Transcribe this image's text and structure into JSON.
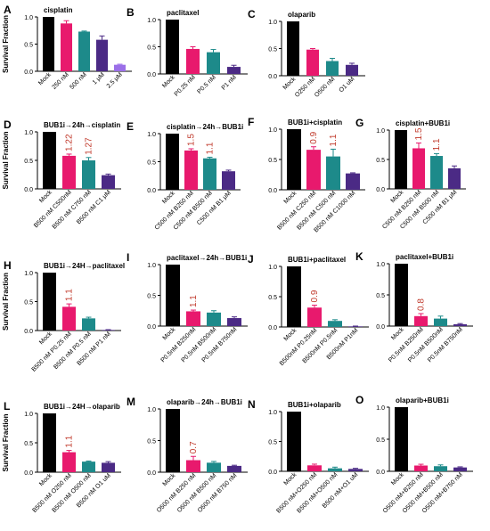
{
  "figure": {
    "ylabel": "Survival Fraction"
  },
  "chart_data": [
    {
      "letter": "A",
      "title": "cisplatin",
      "type": "bar",
      "ylabel": "Survival Fraction",
      "yticks": [
        "0.0",
        "0.5",
        "1.0"
      ],
      "ylim": [
        0,
        1.0
      ],
      "categories": [
        "Mock",
        "250 nM",
        "500 nM",
        "1 μM",
        "2.5 μM"
      ],
      "values": [
        1.0,
        0.88,
        0.73,
        0.58,
        0.12
      ],
      "errors": [
        0,
        0.05,
        0.01,
        0.07,
        0.01
      ],
      "colors": [
        "#000000",
        "#e8196d",
        "#1d8a8a",
        "#4b2a85",
        "#9b6fe8"
      ],
      "annotations": [
        "",
        "",
        "",
        "",
        ""
      ]
    },
    {
      "letter": "B",
      "title": "paclitaxel",
      "type": "bar",
      "ylabel": "",
      "yticks": [
        "0.0",
        "0.5",
        "1.0"
      ],
      "ylim": [
        0,
        1.0
      ],
      "categories": [
        "Mock",
        "P0.25 nM",
        "P0.5 nM",
        "P1 nM"
      ],
      "values": [
        1.0,
        0.46,
        0.4,
        0.13
      ],
      "errors": [
        0,
        0.04,
        0.05,
        0.03
      ],
      "colors": [
        "#000000",
        "#e8196d",
        "#1d8a8a",
        "#4b2a85"
      ],
      "annotations": [
        "",
        "",
        "",
        ""
      ]
    },
    {
      "letter": "C",
      "title": "olaparib",
      "type": "bar",
      "ylabel": "",
      "yticks": [
        "0.0",
        "0.5",
        "1.0"
      ],
      "ylim": [
        0,
        1.0
      ],
      "categories": [
        "Mock",
        "O250 nM",
        "O500 nM",
        "O1 uM"
      ],
      "values": [
        1.0,
        0.48,
        0.27,
        0.2
      ],
      "errors": [
        0,
        0.02,
        0.05,
        0.03
      ],
      "colors": [
        "#000000",
        "#e8196d",
        "#1d8a8a",
        "#4b2a85"
      ],
      "annotations": [
        "",
        "",
        "",
        ""
      ]
    },
    {
      "letter": "D",
      "title": "BUB1i→24h→cisplatin",
      "type": "bar",
      "ylabel": "Survival Fraction",
      "yticks": [
        "0.0",
        "0.5",
        "1.0"
      ],
      "ylim": [
        0,
        1.0
      ],
      "categories": [
        "Mock",
        "B500 nM C500nM",
        "B500 nM C750 nM",
        "B500 nM C1 μM"
      ],
      "values": [
        1.0,
        0.58,
        0.5,
        0.24
      ],
      "errors": [
        0,
        0.03,
        0.05,
        0.02
      ],
      "colors": [
        "#000000",
        "#e8196d",
        "#1d8a8a",
        "#4b2a85"
      ],
      "annotations": [
        "",
        "1.22",
        "1.27",
        ""
      ]
    },
    {
      "letter": "E",
      "title": "cisplatin→24h→BUB1i",
      "type": "bar",
      "ylabel": "",
      "yticks": [
        "0.0",
        "0.5",
        "1.0"
      ],
      "ylim": [
        0,
        1.0
      ],
      "categories": [
        "Mock",
        "C500 nM B250 nM",
        "C500 nM B500 nM",
        "C500 nM B1 μM"
      ],
      "values": [
        1.0,
        0.7,
        0.56,
        0.33
      ],
      "errors": [
        0,
        0.03,
        0.02,
        0.02
      ],
      "colors": [
        "#000000",
        "#e8196d",
        "#1d8a8a",
        "#4b2a85"
      ],
      "annotations": [
        "",
        "1.5",
        "1.1",
        ""
      ]
    },
    {
      "letter": "F",
      "title": "BUB1i+cisplatin",
      "type": "bar",
      "ylabel": "",
      "yticks": [
        "0.0",
        "0.5",
        "1.0"
      ],
      "ylim": [
        0,
        1.0
      ],
      "categories": [
        "Mock",
        "B500 nM C250 nM",
        "B500 nM C500 nM",
        "B500 nM C1000 nM"
      ],
      "values": [
        1.0,
        0.66,
        0.55,
        0.27
      ],
      "errors": [
        0,
        0.05,
        0.12,
        0.01
      ],
      "colors": [
        "#000000",
        "#e8196d",
        "#1d8a8a",
        "#4b2a85"
      ],
      "annotations": [
        "",
        "0.9",
        "1.1",
        ""
      ]
    },
    {
      "letter": "G",
      "title": "cisplatin+BUB1i",
      "type": "bar",
      "ylabel": "",
      "yticks": [
        "0.0",
        "0.5",
        "1.0"
      ],
      "ylim": [
        0,
        1.0
      ],
      "categories": [
        "Mock",
        "C500 nM B250 nM",
        "C500 nM B500 nM",
        "C500 nM B1 μM"
      ],
      "values": [
        1.0,
        0.69,
        0.56,
        0.35
      ],
      "errors": [
        0,
        0.09,
        0.04,
        0.04
      ],
      "colors": [
        "#000000",
        "#e8196d",
        "#1d8a8a",
        "#4b2a85"
      ],
      "annotations": [
        "",
        "1.5",
        "1.1",
        ""
      ]
    },
    {
      "letter": "H",
      "title": "BUB1i→24H→paclitaxel",
      "type": "bar",
      "ylabel": "Survival Fraction",
      "yticks": [
        "0.0",
        "0.5",
        "1.0"
      ],
      "ylim": [
        0,
        1.0
      ],
      "categories": [
        "Mock",
        "B500 nM P0.25 nM",
        "B500 nM P0.5 nM",
        "B500 nM P1 nM"
      ],
      "values": [
        1.0,
        0.41,
        0.21,
        0.01
      ],
      "errors": [
        0,
        0.05,
        0.02,
        0.005
      ],
      "colors": [
        "#000000",
        "#e8196d",
        "#1d8a8a",
        "#4b2a85"
      ],
      "annotations": [
        "",
        "1.1",
        "",
        ""
      ]
    },
    {
      "letter": "I",
      "title": "paclitaxel→24h→BUB1i",
      "type": "bar",
      "ylabel": "",
      "yticks": [
        "0.0",
        "0.5",
        "1.0"
      ],
      "ylim": [
        0,
        1.0
      ],
      "categories": [
        "Mock",
        "P0.5nM B250nM",
        "P0.5nM B500nM",
        "P0.5nM B750nM"
      ],
      "values": [
        1.0,
        0.24,
        0.22,
        0.13
      ],
      "errors": [
        0,
        0.02,
        0.03,
        0.02
      ],
      "colors": [
        "#000000",
        "#e8196d",
        "#1d8a8a",
        "#4b2a85"
      ],
      "annotations": [
        "",
        "1.1",
        "",
        ""
      ]
    },
    {
      "letter": "J",
      "title": "BUB1i+paclitaxel",
      "type": "bar",
      "ylabel": "",
      "yticks": [
        "0.0",
        "0.5",
        "1.0"
      ],
      "ylim": [
        0,
        1.0
      ],
      "categories": [
        "Mock",
        "B500nM P0.25nM",
        "B500nM P0.5nM",
        "B500nM P1nM"
      ],
      "values": [
        1.0,
        0.32,
        0.1,
        0.01
      ],
      "errors": [
        0,
        0.04,
        0.02,
        0.005
      ],
      "colors": [
        "#000000",
        "#e8196d",
        "#1d8a8a",
        "#4b2a85"
      ],
      "annotations": [
        "",
        "0.9",
        "",
        ""
      ]
    },
    {
      "letter": "K",
      "title": "paclitaxel+BUB1i",
      "type": "bar",
      "ylabel": "",
      "yticks": [
        "0.0",
        "0.5",
        "1.0"
      ],
      "ylim": [
        0,
        1.0
      ],
      "categories": [
        "Mock",
        "P0.5nM B250nM",
        "P0.5nM B500nM",
        "P0.5nM B750nM"
      ],
      "values": [
        1.0,
        0.16,
        0.12,
        0.03
      ],
      "errors": [
        0,
        0.04,
        0.04,
        0.01
      ],
      "colors": [
        "#000000",
        "#e8196d",
        "#1d8a8a",
        "#4b2a85"
      ],
      "annotations": [
        "",
        "0.8",
        "",
        ""
      ]
    },
    {
      "letter": "L",
      "title": "BUB1i→24H→olaparib",
      "type": "bar",
      "ylabel": "Survival Fraction",
      "yticks": [
        "0.0",
        "0.5",
        "1.0"
      ],
      "ylim": [
        0,
        1.0
      ],
      "categories": [
        "Mock",
        "B500 nM O250 nM",
        "B500 nM O500 nM",
        "B500 nM O1 uM"
      ],
      "values": [
        1.0,
        0.34,
        0.18,
        0.16
      ],
      "errors": [
        0,
        0.03,
        0.01,
        0.02
      ],
      "colors": [
        "#000000",
        "#e8196d",
        "#1d8a8a",
        "#4b2a85"
      ],
      "annotations": [
        "",
        "1.1",
        "",
        ""
      ]
    },
    {
      "letter": "M",
      "title": "olaparib→24h→BUB1i",
      "type": "bar",
      "ylabel": "",
      "yticks": [
        "0.0",
        "0.5",
        "1.0"
      ],
      "ylim": [
        0,
        1.0
      ],
      "categories": [
        "Mock",
        "O500 nM B250 nM",
        "O500 nM B500 nM",
        "O500 nM B750 nM"
      ],
      "values": [
        1.0,
        0.19,
        0.15,
        0.1
      ],
      "errors": [
        0,
        0.06,
        0.02,
        0.01
      ],
      "colors": [
        "#000000",
        "#e8196d",
        "#1d8a8a",
        "#4b2a85"
      ],
      "annotations": [
        "",
        "0.7",
        "",
        ""
      ]
    },
    {
      "letter": "N",
      "title": "BUB1i+olaparib",
      "type": "bar",
      "ylabel": "",
      "yticks": [
        "0.0",
        "0.5",
        "1.0"
      ],
      "ylim": [
        0,
        1.0
      ],
      "categories": [
        "Mock",
        "B500 nM+O250 nM",
        "B500 nM+O500 nM",
        "B500 nM+O1 uM"
      ],
      "values": [
        1.0,
        0.1,
        0.05,
        0.04
      ],
      "errors": [
        0,
        0.02,
        0.02,
        0.01
      ],
      "colors": [
        "#000000",
        "#e8196d",
        "#1d8a8a",
        "#4b2a85"
      ],
      "annotations": [
        "",
        "",
        "",
        ""
      ]
    },
    {
      "letter": "O",
      "title": "olaparib+BUB1i",
      "type": "bar",
      "ylabel": "",
      "yticks": [
        "0.0",
        "0.5",
        "1.0"
      ],
      "ylim": [
        0,
        1.0
      ],
      "categories": [
        "Mock",
        "O500 nM+B250 nM",
        "O500 nM+B500 nM",
        "O500 nM+B750 nM"
      ],
      "values": [
        1.0,
        0.09,
        0.08,
        0.06
      ],
      "errors": [
        0,
        0.02,
        0.02,
        0.01
      ],
      "colors": [
        "#000000",
        "#e8196d",
        "#1d8a8a",
        "#4b2a85"
      ],
      "annotations": [
        "",
        "",
        "",
        ""
      ]
    }
  ]
}
